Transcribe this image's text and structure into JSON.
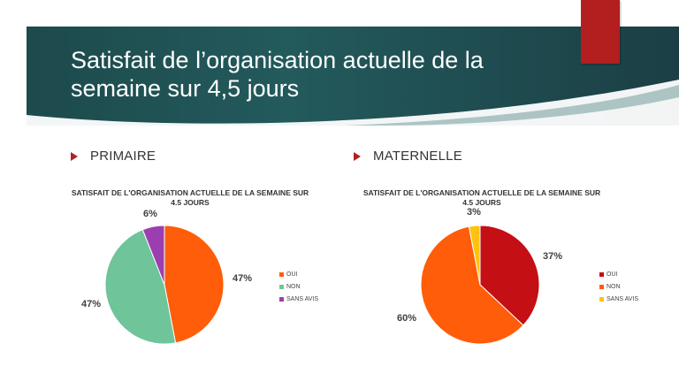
{
  "slide": {
    "title": "Satisfait de l’organisation actuelle de la semaine sur 4,5 jours",
    "colors": {
      "banner": "#1f4f52",
      "accent": "#b31f1f"
    }
  },
  "sections": [
    {
      "label": "PRIMAIRE"
    },
    {
      "label": "MATERNELLE"
    }
  ],
  "chart_data": [
    {
      "type": "pie",
      "title": "SATISFAIT DE L'ORGANISATION ACTUELLE DE LA SEMAINE SUR 4.5 JOURS",
      "categories": [
        "OUI",
        "NON",
        "SANS AVIS"
      ],
      "values": [
        47,
        47,
        6
      ],
      "data_labels": [
        "47%",
        "47%",
        "6%"
      ],
      "colors": [
        "#ff5d0a",
        "#6fc49a",
        "#9b3fb0"
      ],
      "legend": "right"
    },
    {
      "type": "pie",
      "title": "SATISFAIT DE L'ORGANISATION ACTUELLE DE LA SEMAINE SUR 4.5 JOURS",
      "categories": [
        "OUI",
        "NON",
        "SANS AVIS"
      ],
      "values": [
        37,
        60,
        3
      ],
      "data_labels": [
        "37%",
        "60%",
        "3%"
      ],
      "colors": [
        "#c40f14",
        "#ff5d0a",
        "#ffc20e"
      ],
      "legend": "right"
    }
  ]
}
